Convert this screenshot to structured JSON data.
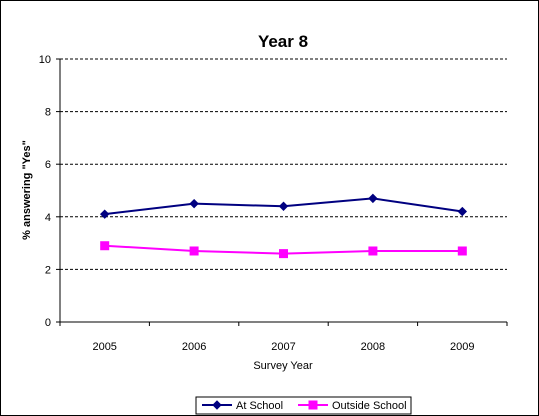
{
  "chart_data": {
    "type": "line",
    "title": "Year 8",
    "xlabel": "Survey Year",
    "ylabel": "% answering \"Yes\"",
    "categories": [
      "2005",
      "2006",
      "2007",
      "2008",
      "2009"
    ],
    "ylim": [
      0,
      10
    ],
    "yticks": [
      "0",
      "2",
      "4",
      "6",
      "8",
      "10"
    ],
    "grid": "horizontal dashed",
    "legend_position": "bottom",
    "series": [
      {
        "name": "At School",
        "values": [
          4.1,
          4.5,
          4.4,
          4.7,
          4.2
        ],
        "color": "#000080",
        "marker": "diamond"
      },
      {
        "name": "Outside School",
        "values": [
          2.9,
          2.7,
          2.6,
          2.7,
          2.7
        ],
        "color": "#FF00FF",
        "marker": "square"
      }
    ]
  }
}
